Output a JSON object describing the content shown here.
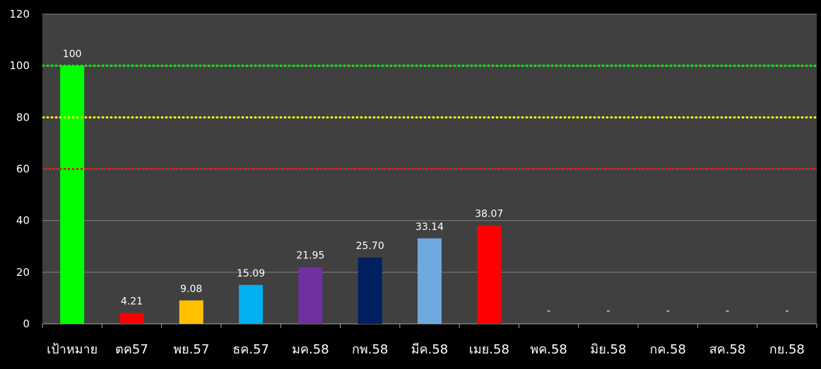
{
  "chart_data": {
    "type": "bar",
    "title": "",
    "xlabel": "",
    "ylabel": "",
    "ylim": [
      0,
      120
    ],
    "yticks": [
      0,
      20,
      40,
      60,
      80,
      100,
      120
    ],
    "grid": true,
    "legend": "none",
    "categories": [
      "เป้าหมาย",
      "ตค57",
      "พย.57",
      "ธค.57",
      "มค.58",
      "กพ.58",
      "มีค.58",
      "เมย.58",
      "พค.58",
      "มิย.58",
      "กค.58",
      "สค.58",
      "กย.58"
    ],
    "values": [
      100,
      4.21,
      9.08,
      15.09,
      21.95,
      25.7,
      33.14,
      38.07,
      null,
      null,
      null,
      null,
      null
    ],
    "data_labels": [
      "100",
      "4.21",
      "9.08",
      "15.09",
      "21.95",
      "25.70",
      "33.14",
      "38.07",
      "-",
      "-",
      "-",
      "-",
      "-"
    ],
    "bar_colors": [
      "#00ff00",
      "#ff0000",
      "#ffc000",
      "#00b0f0",
      "#7030a0",
      "#002060",
      "#6fa8dc",
      "#ff0000",
      "#ffffff",
      "#ffffff",
      "#ffffff",
      "#ffffff",
      "#ffffff"
    ],
    "reference_lines": [
      {
        "value": 100,
        "color": "#00ff00",
        "style": "dotted"
      },
      {
        "value": 80,
        "color": "#ffff00",
        "style": "dotted"
      },
      {
        "value": 60,
        "color": "#ff0000",
        "style": "dotted"
      }
    ],
    "colors": {
      "plot_background": "#404040",
      "page_background": "#000000",
      "gridline": "#7f7f7f",
      "text": "#ffffff"
    }
  }
}
